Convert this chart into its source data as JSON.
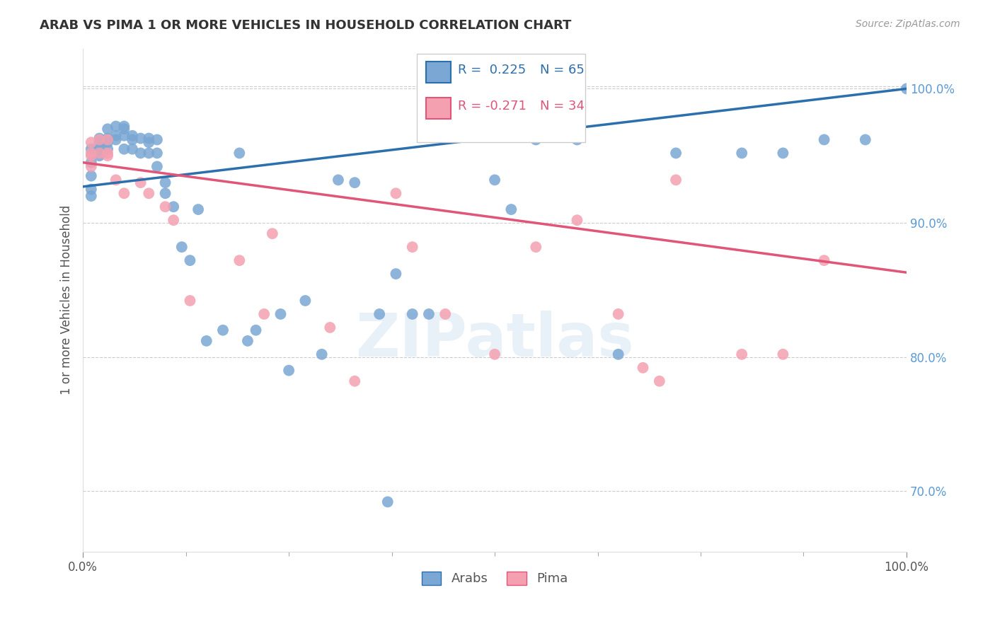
{
  "title": "ARAB VS PIMA 1 OR MORE VEHICLES IN HOUSEHOLD CORRELATION CHART",
  "source": "Source: ZipAtlas.com",
  "ylabel": "1 or more Vehicles in Household",
  "watermark": "ZIPatlas",
  "legend_arab": "Arabs",
  "legend_pima": "Pima",
  "legend_arab_r": "R =  0.225",
  "legend_arab_n": "N = 65",
  "legend_pima_r": "R = -0.271",
  "legend_pima_n": "N = 34",
  "arab_color": "#7ba7d4",
  "pima_color": "#f4a0b0",
  "arab_line_color": "#2c6fad",
  "pima_line_color": "#e05578",
  "right_label_color": "#5b9bd5",
  "arab_x": [
    0.01,
    0.01,
    0.01,
    0.01,
    0.01,
    0.02,
    0.02,
    0.02,
    0.02,
    0.02,
    0.03,
    0.03,
    0.03,
    0.03,
    0.04,
    0.04,
    0.04,
    0.05,
    0.05,
    0.05,
    0.05,
    0.06,
    0.06,
    0.06,
    0.07,
    0.07,
    0.08,
    0.08,
    0.08,
    0.09,
    0.09,
    0.09,
    0.1,
    0.1,
    0.11,
    0.12,
    0.13,
    0.14,
    0.15,
    0.17,
    0.19,
    0.2,
    0.21,
    0.24,
    0.25,
    0.27,
    0.29,
    0.31,
    0.33,
    0.36,
    0.37,
    0.38,
    0.4,
    0.42,
    0.5,
    0.52,
    0.55,
    0.6,
    0.65,
    0.72,
    0.8,
    0.85,
    0.9,
    0.95,
    1.0
  ],
  "arab_y": [
    0.955,
    0.945,
    0.935,
    0.925,
    0.92,
    0.963,
    0.955,
    0.952,
    0.95,
    0.96,
    0.97,
    0.963,
    0.96,
    0.955,
    0.972,
    0.965,
    0.962,
    0.972,
    0.97,
    0.965,
    0.955,
    0.965,
    0.962,
    0.955,
    0.963,
    0.952,
    0.963,
    0.96,
    0.952,
    0.962,
    0.952,
    0.942,
    0.93,
    0.922,
    0.912,
    0.882,
    0.872,
    0.91,
    0.812,
    0.82,
    0.952,
    0.812,
    0.82,
    0.832,
    0.79,
    0.842,
    0.802,
    0.932,
    0.93,
    0.832,
    0.692,
    0.862,
    0.832,
    0.832,
    0.932,
    0.91,
    0.962,
    0.962,
    0.802,
    0.952,
    0.952,
    0.952,
    0.962,
    0.962,
    1.0
  ],
  "pima_x": [
    0.01,
    0.01,
    0.01,
    0.01,
    0.02,
    0.02,
    0.03,
    0.03,
    0.03,
    0.04,
    0.05,
    0.07,
    0.08,
    0.1,
    0.11,
    0.13,
    0.19,
    0.22,
    0.23,
    0.3,
    0.33,
    0.38,
    0.4,
    0.44,
    0.5,
    0.55,
    0.6,
    0.65,
    0.68,
    0.7,
    0.72,
    0.8,
    0.85,
    0.9
  ],
  "pima_y": [
    0.96,
    0.952,
    0.95,
    0.942,
    0.962,
    0.952,
    0.962,
    0.952,
    0.95,
    0.932,
    0.922,
    0.93,
    0.922,
    0.912,
    0.902,
    0.842,
    0.872,
    0.832,
    0.892,
    0.822,
    0.782,
    0.922,
    0.882,
    0.832,
    0.802,
    0.882,
    0.902,
    0.832,
    0.792,
    0.782,
    0.932,
    0.802,
    0.802,
    0.872
  ],
  "xlim": [
    0.0,
    1.0
  ],
  "ylim": [
    0.655,
    1.03
  ],
  "yticks": [
    0.7,
    0.8,
    0.9,
    1.0
  ],
  "ytick_labels": [
    "70.0%",
    "80.0%",
    "90.0%",
    "100.0%"
  ],
  "xtick_labels": [
    "0.0%",
    "100.0%"
  ],
  "grid_color": "#cccccc",
  "background_color": "#ffffff",
  "arab_line_x0": 0.0,
  "arab_line_y0": 0.927,
  "arab_line_x1": 1.0,
  "arab_line_y1": 1.0,
  "pima_line_x0": 0.0,
  "pima_line_y0": 0.945,
  "pima_line_x1": 1.0,
  "pima_line_y1": 0.863
}
